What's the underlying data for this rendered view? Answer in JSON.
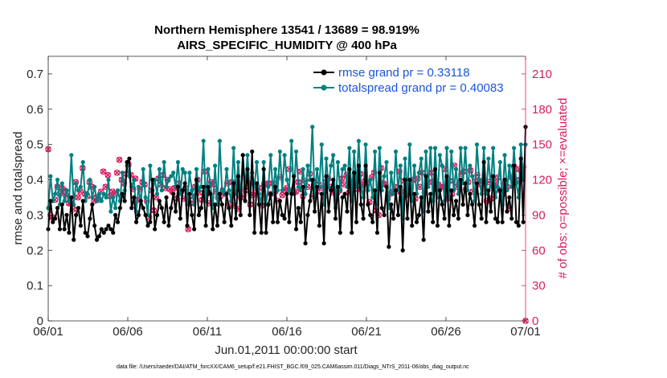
{
  "chart_data": {
    "type": "line",
    "title": "Northern Hemisphere 13541 / 13689 = 98.919%",
    "subtitle": "AIRS_SPECIFIC_HUMIDITY @ 400 hPa",
    "xlabel": "Jun.01,2011 00:00:00 start",
    "ylabel": "rmse and totalspread",
    "y2label": "# of obs: o=possible; ×=evaluated",
    "footnote": "data file: /Users/raeder/DAI/ATM_forcXX/CAM6_setup/f.e21.FHIST_BGC.f09_025.CAM6assim.011/Diags_NTrS_2011-06/obs_diag_output.nc",
    "xlim": [
      0,
      30
    ],
    "ylim": [
      0,
      0.75
    ],
    "y2lim": [
      0,
      225
    ],
    "x_ticks": [
      0,
      5,
      10,
      15,
      20,
      25,
      30
    ],
    "x_tick_labels": [
      "06/01",
      "06/06",
      "06/11",
      "06/16",
      "06/21",
      "06/26",
      "07/01"
    ],
    "y_ticks": [
      0,
      0.1,
      0.2,
      0.3,
      0.4,
      0.5,
      0.6,
      0.7
    ],
    "y_tick_labels": [
      "0",
      "0.1",
      "0.2",
      "0.3",
      "0.4",
      "0.5",
      "0.6",
      "0.7"
    ],
    "y2_ticks": [
      0,
      30,
      60,
      90,
      120,
      150,
      180,
      210
    ],
    "y2_tick_labels": [
      "0",
      "30",
      "60",
      "90",
      "120",
      "150",
      "180",
      "210"
    ],
    "legend": [
      "rmse grand pr = 0.33118",
      "totalspread grand pr = 0.40083"
    ],
    "legend_position": "top-right",
    "colors": {
      "rmse": "#000000",
      "totalspread": "#008080",
      "obs": "#d81b60"
    },
    "rmse": [
      0.26,
      0.34,
      0.28,
      0.29,
      0.32,
      0.26,
      0.33,
      0.26,
      0.3,
      0.25,
      0.35,
      0.23,
      0.3,
      0.32,
      0.27,
      0.34,
      0.25,
      0.24,
      0.29,
      0.33,
      0.27,
      0.23,
      0.24,
      0.26,
      0.25,
      0.26,
      0.27,
      0.26,
      0.25,
      0.3,
      0.28,
      0.32,
      0.36,
      0.34,
      0.45,
      0.46,
      0.32,
      0.35,
      0.28,
      0.3,
      0.34,
      0.32,
      0.3,
      0.27,
      0.28,
      0.4,
      0.26,
      0.3,
      0.34,
      0.32,
      0.28,
      0.35,
      0.27,
      0.32,
      0.36,
      0.31,
      0.38,
      0.29,
      0.37,
      0.39,
      0.27,
      0.36,
      0.3,
      0.26,
      0.4,
      0.3,
      0.32,
      0.38,
      0.27,
      0.38,
      0.36,
      0.26,
      0.33,
      0.27,
      0.36,
      0.33,
      0.28,
      0.36,
      0.32,
      0.27,
      0.39,
      0.29,
      0.41,
      0.3,
      0.47,
      0.34,
      0.43,
      0.3,
      0.48,
      0.25,
      0.39,
      0.33,
      0.25,
      0.43,
      0.25,
      0.33,
      0.36,
      0.28,
      0.38,
      0.28,
      0.34,
      0.3,
      0.29,
      0.36,
      0.28,
      0.36,
      0.41,
      0.26,
      0.32,
      0.28,
      0.38,
      0.22,
      0.3,
      0.34,
      0.4,
      0.31,
      0.38,
      0.27,
      0.36,
      0.22,
      0.41,
      0.31,
      0.37,
      0.4,
      0.29,
      0.38,
      0.25,
      0.35,
      0.36,
      0.31,
      0.43,
      0.25,
      0.42,
      0.28,
      0.44,
      0.33,
      0.29,
      0.44,
      0.33,
      0.3,
      0.28,
      0.37,
      0.25,
      0.42,
      0.32,
      0.3,
      0.38,
      0.21,
      0.33,
      0.29,
      0.37,
      0.3,
      0.38,
      0.2,
      0.4,
      0.29,
      0.4,
      0.27,
      0.36,
      0.28,
      0.3,
      0.35,
      0.23,
      0.41,
      0.31,
      0.36,
      0.28,
      0.43,
      0.27,
      0.37,
      0.33,
      0.29,
      0.41,
      0.27,
      0.37,
      0.3,
      0.34,
      0.29,
      0.4,
      0.33,
      0.39,
      0.3,
      0.36,
      0.33,
      0.27,
      0.39,
      0.33,
      0.29,
      0.45,
      0.28,
      0.37,
      0.31,
      0.41,
      0.29,
      0.28,
      0.37,
      0.28,
      0.4,
      0.31,
      0.35,
      0.29,
      0.44,
      0.28,
      0.27,
      0.46,
      0.28,
      0.55
    ],
    "totalspread": [
      0.32,
      0.41,
      0.34,
      0.36,
      0.4,
      0.33,
      0.39,
      0.34,
      0.37,
      0.34,
      0.47,
      0.33,
      0.39,
      0.37,
      0.38,
      0.45,
      0.34,
      0.36,
      0.4,
      0.35,
      0.38,
      0.34,
      0.36,
      0.34,
      0.36,
      0.35,
      0.4,
      0.31,
      0.35,
      0.32,
      0.37,
      0.34,
      0.42,
      0.37,
      0.44,
      0.41,
      0.38,
      0.4,
      0.31,
      0.38,
      0.33,
      0.43,
      0.35,
      0.3,
      0.44,
      0.37,
      0.4,
      0.36,
      0.43,
      0.37,
      0.45,
      0.38,
      0.4,
      0.41,
      0.42,
      0.38,
      0.45,
      0.36,
      0.43,
      0.42,
      0.33,
      0.42,
      0.37,
      0.33,
      0.43,
      0.37,
      0.38,
      0.51,
      0.34,
      0.43,
      0.39,
      0.32,
      0.44,
      0.33,
      0.51,
      0.37,
      0.36,
      0.43,
      0.37,
      0.34,
      0.49,
      0.36,
      0.45,
      0.35,
      0.47,
      0.38,
      0.47,
      0.36,
      0.42,
      0.38,
      0.45,
      0.36,
      0.33,
      0.45,
      0.33,
      0.38,
      0.47,
      0.36,
      0.43,
      0.37,
      0.48,
      0.37,
      0.47,
      0.4,
      0.37,
      0.51,
      0.36,
      0.48,
      0.38,
      0.37,
      0.43,
      0.36,
      0.44,
      0.4,
      0.55,
      0.35,
      0.43,
      0.38,
      0.5,
      0.33,
      0.46,
      0.38,
      0.44,
      0.47,
      0.32,
      0.45,
      0.37,
      0.43,
      0.44,
      0.38,
      0.49,
      0.34,
      0.48,
      0.38,
      0.51,
      0.38,
      0.35,
      0.5,
      0.37,
      0.4,
      0.35,
      0.48,
      0.33,
      0.49,
      0.37,
      0.41,
      0.45,
      0.32,
      0.42,
      0.36,
      0.48,
      0.37,
      0.44,
      0.29,
      0.46,
      0.36,
      0.5,
      0.34,
      0.44,
      0.36,
      0.42,
      0.46,
      0.31,
      0.48,
      0.38,
      0.49,
      0.34,
      0.49,
      0.35,
      0.47,
      0.44,
      0.34,
      0.49,
      0.35,
      0.48,
      0.37,
      0.43,
      0.36,
      0.49,
      0.39,
      0.49,
      0.37,
      0.44,
      0.41,
      0.34,
      0.5,
      0.4,
      0.36,
      0.49,
      0.36,
      0.46,
      0.38,
      0.49,
      0.35,
      0.38,
      0.45,
      0.33,
      0.47,
      0.37,
      0.44,
      0.38,
      0.49,
      0.39,
      0.35,
      0.5,
      0.4,
      0.5
    ],
    "obs_possible": [
      146,
      90,
      88,
      103,
      114,
      108,
      113,
      111,
      106,
      100,
      100,
      95,
      118,
      105,
      110,
      130,
      108,
      106,
      118,
      114,
      102,
      105,
      103,
      110,
      127,
      114,
      124,
      106,
      110,
      108,
      126,
      137,
      120,
      117,
      125,
      133,
      124,
      112,
      121,
      103,
      112,
      118,
      116,
      102,
      88,
      111,
      94,
      105,
      121,
      116,
      124,
      113,
      120,
      112,
      110,
      113,
      104,
      117,
      110,
      104,
      113,
      78,
      100,
      106,
      114,
      120,
      109,
      103,
      127,
      108,
      100,
      118,
      116,
      110,
      105,
      106,
      111,
      108,
      117,
      99,
      118,
      98,
      113,
      95,
      105,
      106,
      111,
      117,
      99,
      107,
      116,
      110,
      113,
      98,
      116,
      116,
      117,
      108,
      117,
      110,
      102,
      122,
      107,
      111,
      113,
      129,
      111,
      109,
      110,
      118,
      127,
      106,
      119,
      114,
      125,
      106,
      119,
      110,
      116,
      113,
      105,
      118,
      121,
      114,
      109,
      110,
      109,
      111,
      121,
      116,
      124,
      109,
      119,
      117,
      117,
      112,
      125,
      116,
      119,
      117,
      101,
      122,
      126,
      94,
      90,
      130,
      117,
      116,
      104,
      108,
      110,
      114,
      110,
      127,
      110,
      119,
      107,
      114,
      113,
      120,
      104,
      121,
      114,
      126,
      109,
      118,
      118,
      126,
      119,
      112,
      116,
      114,
      114,
      129,
      104,
      119,
      108,
      132,
      114,
      117,
      125,
      127,
      112,
      118,
      128,
      110,
      119,
      124,
      116,
      119,
      119,
      102,
      118,
      104,
      114,
      117,
      122,
      111,
      108,
      117,
      114,
      96,
      122,
      131,
      120,
      129,
      128,
      131,
      0
    ],
    "obs_evaluated": [
      146,
      87,
      88,
      103,
      114,
      108,
      113,
      111,
      106,
      100,
      100,
      95,
      118,
      105,
      110,
      130,
      108,
      106,
      118,
      114,
      102,
      105,
      103,
      110,
      127,
      114,
      124,
      106,
      110,
      108,
      126,
      137,
      120,
      117,
      125,
      133,
      124,
      112,
      121,
      103,
      112,
      118,
      116,
      102,
      88,
      111,
      94,
      105,
      121,
      116,
      124,
      113,
      120,
      112,
      110,
      113,
      104,
      117,
      110,
      104,
      113,
      78,
      100,
      106,
      114,
      120,
      109,
      103,
      127,
      108,
      100,
      118,
      116,
      110,
      105,
      106,
      111,
      108,
      117,
      99,
      118,
      98,
      113,
      95,
      105,
      106,
      111,
      117,
      99,
      107,
      116,
      110,
      113,
      98,
      116,
      116,
      117,
      108,
      117,
      110,
      102,
      122,
      107,
      111,
      113,
      129,
      111,
      109,
      110,
      118,
      127,
      106,
      119,
      114,
      125,
      106,
      119,
      110,
      116,
      113,
      105,
      118,
      121,
      114,
      109,
      110,
      109,
      111,
      121,
      116,
      124,
      109,
      119,
      117,
      117,
      112,
      125,
      116,
      119,
      117,
      101,
      122,
      126,
      94,
      90,
      130,
      117,
      116,
      104,
      108,
      110,
      114,
      110,
      127,
      110,
      119,
      107,
      114,
      113,
      120,
      104,
      121,
      114,
      126,
      109,
      118,
      118,
      126,
      119,
      112,
      116,
      114,
      114,
      129,
      104,
      119,
      108,
      132,
      114,
      117,
      125,
      127,
      112,
      118,
      128,
      110,
      119,
      124,
      116,
      119,
      119,
      102,
      118,
      104,
      114,
      117,
      122,
      111,
      108,
      117,
      114,
      96,
      122,
      131,
      120,
      129,
      128,
      131,
      0
    ]
  }
}
